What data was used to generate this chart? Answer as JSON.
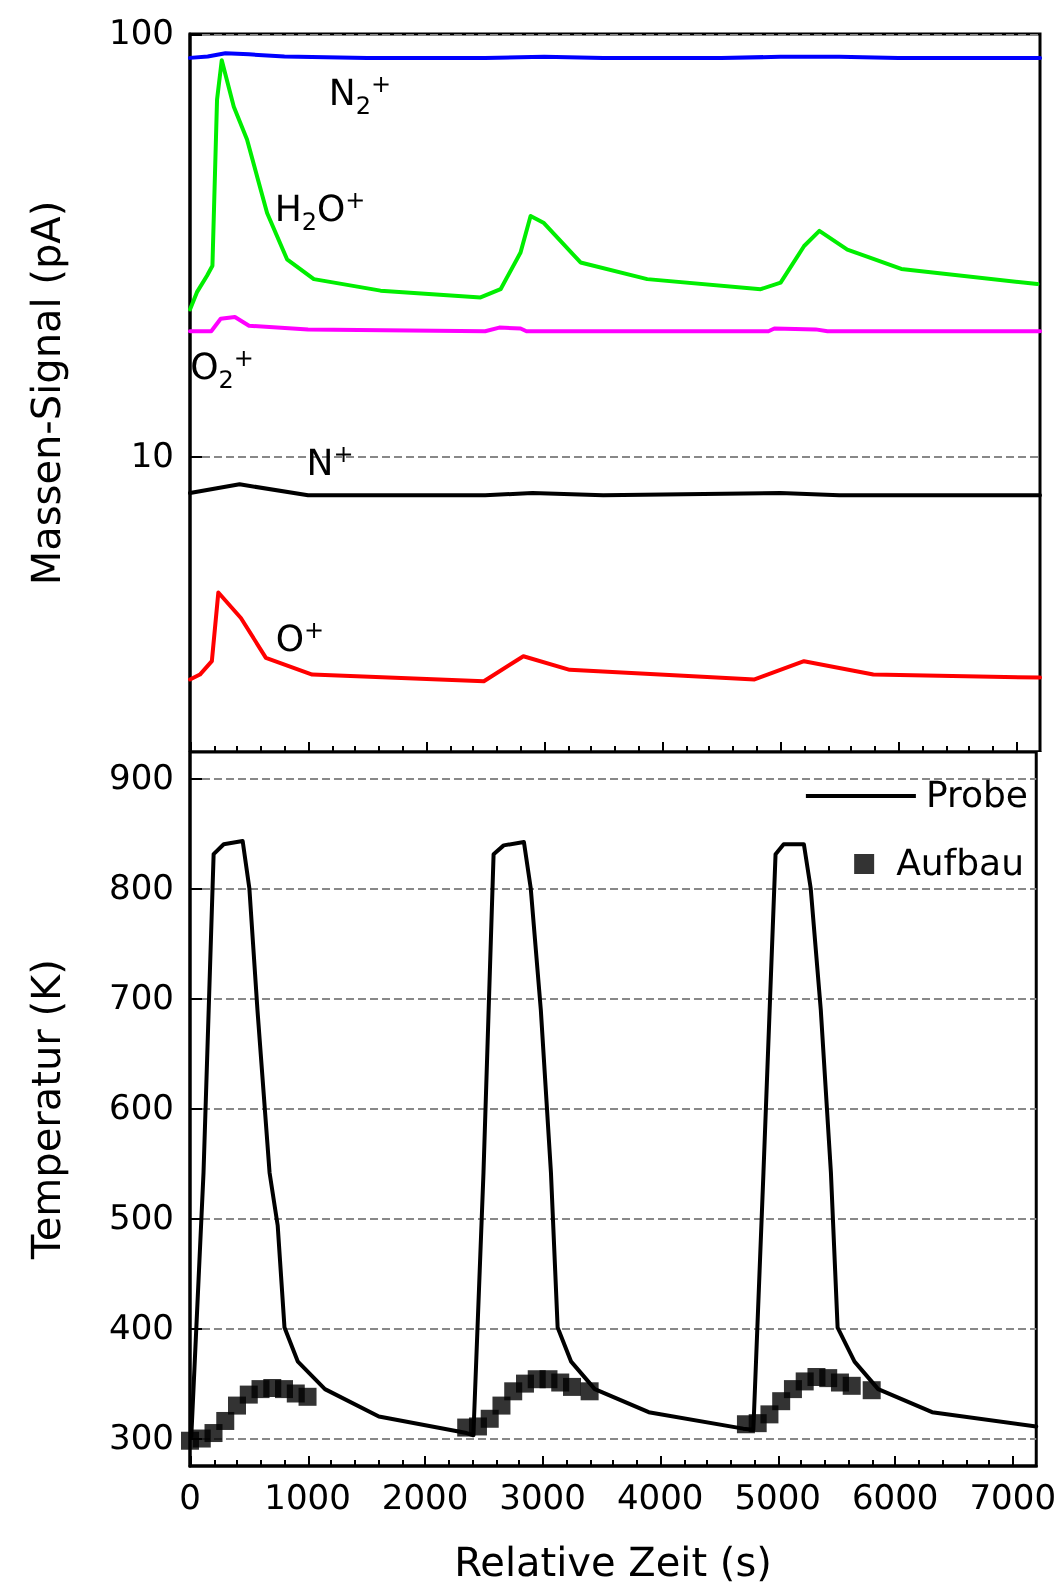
{
  "chart_data": [
    {
      "type": "line",
      "ylabel": "Massen-Signal (pA)",
      "log": "y",
      "ylim": [
        2,
        100
      ],
      "yticks": [
        10,
        100
      ],
      "xlim": [
        0,
        7200
      ],
      "xticks": [
        0,
        1000,
        2000,
        3000,
        4000,
        5000,
        6000,
        7000
      ],
      "tick_labels": "y",
      "grid": "y",
      "series": [
        {
          "name": "N$_{2}$$^{+}$",
          "color": "#0000ff",
          "x": [
            0,
            150,
            300,
            500,
            800,
            1500,
            2500,
            3000,
            3500,
            4500,
            5000,
            5500,
            6000,
            7200
          ],
          "values": [
            87.8,
            88.5,
            90,
            89.5,
            88.5,
            87.8,
            87.8,
            88.3,
            87.8,
            87.8,
            88.3,
            88.3,
            87.8,
            87.8
          ]
        },
        {
          "name": "H$_{2}$O$^{+}$",
          "color": "#00ee00",
          "x": [
            0,
            59,
            144,
            190,
            229,
            269,
            371,
            483,
            653,
            822,
            1049,
            1614,
            2461,
            2631,
            2800,
            2885,
            2998,
            3308,
            3873,
            4834,
            5003,
            5202,
            5331,
            5568,
            6025,
            7178
          ],
          "values": [
            22.3,
            24.5,
            26.8,
            28.3,
            69.9,
            86.7,
            67.3,
            56.3,
            37.7,
            29.3,
            26.3,
            24.7,
            23.8,
            24.9,
            30.4,
            37.1,
            35.7,
            28.8,
            26.3,
            24.9,
            25.8,
            31.5,
            34.2,
            30.9,
            27.8,
            25.6
          ]
        },
        {
          "name": "O$_{2}$$^{+}$",
          "color": "#ff00ff",
          "x": [
            0,
            180,
            260,
            380,
            500,
            1000,
            2500,
            2620,
            2800,
            2850,
            4900,
            4950,
            5300,
            5400,
            7200
          ],
          "values": [
            19.8,
            19.8,
            21.2,
            21.4,
            20.4,
            20.0,
            19.8,
            20.2,
            20.1,
            19.8,
            19.8,
            20.1,
            20.0,
            19.8,
            19.8
          ]
        },
        {
          "name": "N$^{+}$",
          "color": "#000000",
          "x": [
            0,
            420,
            1000,
            2500,
            2900,
            3500,
            5000,
            5500,
            7200
          ],
          "values": [
            8.2,
            8.6,
            8.1,
            8.1,
            8.2,
            8.1,
            8.2,
            8.1,
            8.1
          ]
        },
        {
          "name": "O$^{+}$",
          "color": "#ff0000",
          "x": [
            0,
            84,
            185,
            240,
            431,
            643,
            1035,
            2489,
            2824,
            3216,
            4782,
            5201,
            5788,
            7200
          ],
          "values": [
            2.97,
            3.05,
            3.28,
            4.77,
            4.15,
            3.34,
            3.05,
            2.94,
            3.37,
            3.13,
            2.97,
            3.28,
            3.05,
            3.0
          ]
        }
      ]
    },
    {
      "type": "line",
      "xlabel": "Relative Zeit (s)",
      "ylabel": "Temperatur (K)",
      "xlim": [
        0,
        7200
      ],
      "xticks": [
        0,
        1000,
        2000,
        3000,
        4000,
        5000,
        6000,
        7000
      ],
      "ylim": [
        275,
        925
      ],
      "yticks": [
        300,
        400,
        500,
        600,
        700,
        800,
        900
      ],
      "grid": "y",
      "legend": "top right",
      "series": [
        {
          "name": "Probe",
          "color": "#000000",
          "x": [
            11,
            115,
            201,
            287,
            448,
            505,
            574,
            677,
            746,
            804,
            918,
            1148,
            1607,
            2353,
            2411,
            2497,
            2583,
            2669,
            2841,
            2899,
            2985,
            3071,
            3128,
            3243,
            3444,
            3903,
            4707,
            4793,
            4879,
            4982,
            5051,
            5223,
            5281,
            5367,
            5453,
            5510,
            5654,
            5855,
            6314,
            7200
          ],
          "values": [
            302,
            542,
            832,
            841,
            844,
            801,
            690,
            542,
            494,
            401,
            370,
            345,
            320,
            305,
            303,
            542,
            832,
            840,
            843,
            801,
            690,
            542,
            401,
            370,
            345,
            324,
            309,
            308,
            542,
            832,
            841,
            841,
            801,
            690,
            542,
            401,
            370,
            345,
            324,
            311
          ]
        },
        {
          "name": "Aufbau",
          "type": "scatter",
          "marker": "square",
          "color": "#000000",
          "x": [
            0,
            100,
            200,
            300,
            400,
            500,
            600,
            700,
            800,
            900,
            1000,
            2350,
            2450,
            2550,
            2650,
            2750,
            2850,
            2950,
            3050,
            3150,
            3250,
            3400,
            4730,
            4830,
            4930,
            5030,
            5130,
            5230,
            5330,
            5430,
            5530,
            5630,
            5800
          ],
          "values": [
            298,
            300,
            305,
            316,
            330,
            340,
            345,
            346,
            345,
            341,
            338,
            310,
            311,
            318,
            330,
            343,
            350,
            354,
            354,
            351,
            347,
            343,
            313,
            314,
            322,
            334,
            345,
            352,
            356,
            355,
            351,
            348,
            344
          ]
        }
      ]
    }
  ]
}
